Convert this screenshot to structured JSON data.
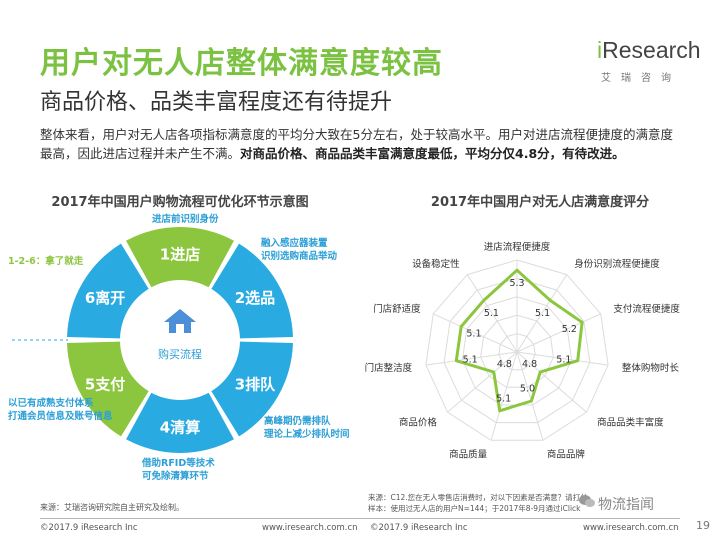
{
  "header": {
    "title": "用户对无人店整体满意度较高",
    "subtitle": "商品价格、品类丰富程度还有待提升"
  },
  "logo": {
    "brand_prefix": "i",
    "brand_main": "Research",
    "chinese": "艾瑞咨询"
  },
  "summary": {
    "normal": "整体来看，用户对无人店各项指标满意度的平均分大致在5分左右，处于较高水平。用户对进店流程便捷度的满意度最高，因此进店过程并未产生不满。",
    "bold": "对商品价格、商品品类丰富满意度最低，平均分仅4.8分，有待改进。"
  },
  "diagram": {
    "title": "2017年中国用户购物流程可优化环节示意图",
    "center_label": "购买流程",
    "steps": [
      "1进店",
      "2选品",
      "3排队",
      "4清算",
      "5支付",
      "6离开"
    ],
    "annotations": {
      "enter": "进店前识别身份",
      "select": "融入感应器装置\n识别选购商品举动",
      "queue": "高峰期仍需排队\n理论上减少排队时间",
      "settle": "借助RFID等技术\n可免除清算环节",
      "pay": "以已有成熟支付体系\n打通会员信息及账号信息",
      "leave": "1-2-6：拿了就走"
    },
    "colors": {
      "blue": "#29abe2",
      "green": "#8cc63f",
      "house": "#4a8fd8"
    }
  },
  "chart_data": {
    "type": "radar",
    "title": "2017年中国用户对无人店满意度评分",
    "categories": [
      "进店流程便捷度",
      "身份识别流程便捷度",
      "支付流程便捷度",
      "整体购物时长",
      "商品品类丰富度",
      "商品品牌",
      "商品质量",
      "商品价格",
      "门店整洁度",
      "门店舒适度",
      "设备稳定性"
    ],
    "values": [
      5.3,
      5.1,
      5.2,
      5.1,
      4.8,
      5.0,
      5.1,
      4.8,
      5.1,
      5.1,
      5.1
    ],
    "series_color": "#8cc63f"
  },
  "source": {
    "left": "来源：艾瑞咨询研究院自主研究及绘制。",
    "right_line1": "来源：C12.您在无人零售店消费时，对以下因素是否满意？请打分",
    "right_line2": "样本：使用过无人店的用户N=144；于2017年8-9月通过iClick"
  },
  "footer": {
    "copyright_left": "©2017.9 iResearch Inc",
    "url_left": "www.iresearch.com.cn",
    "copyright_right": "©2017.9 iResearch Inc",
    "url_right": "www.iresearch.com.cn",
    "page": "19",
    "wechat": "物流指闻"
  }
}
